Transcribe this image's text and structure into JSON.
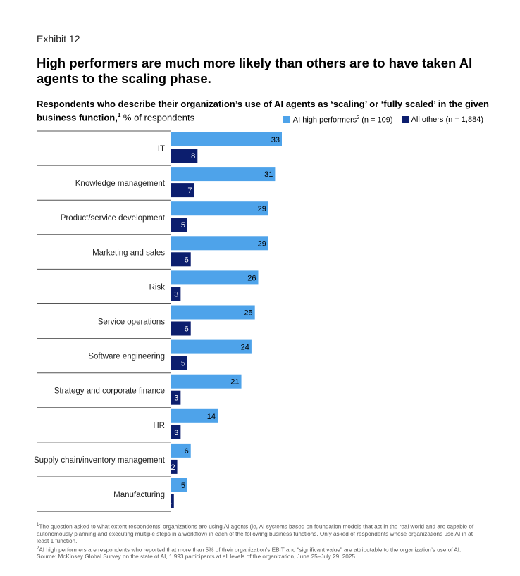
{
  "exhibit": "Exhibit 12",
  "headline": "High performers are much more likely than others are to have taken AI agents to the scaling phase.",
  "subtitle": {
    "bold": "Respondents who describe their organization’s use of AI agents as ‘scaling’ or ‘fully scaled’ in the given business function,",
    "sup": "1",
    "unit": " % of respondents"
  },
  "legend": {
    "high_label": "AI high performers",
    "high_sup": "2",
    "high_n": " (n = 109)",
    "others_label": "All others (n = 1,884)"
  },
  "colors": {
    "high": "#4ea3ea",
    "others": "#0c1e6e",
    "divider": "#555555"
  },
  "chart_data": {
    "type": "bar",
    "orientation": "horizontal",
    "categories": [
      "IT",
      "Knowledge management",
      "Product/service development",
      "Marketing and sales",
      "Risk",
      "Service operations",
      "Software engineering",
      "Strategy and corporate finance",
      "HR",
      "Supply chain/inventory management",
      "Manufacturing"
    ],
    "series": [
      {
        "name": "AI high performers (n = 109)",
        "values": [
          33,
          31,
          29,
          29,
          26,
          25,
          24,
          21,
          14,
          6,
          5
        ]
      },
      {
        "name": "All others (n = 1,884)",
        "values": [
          8,
          7,
          5,
          6,
          3,
          6,
          5,
          3,
          3,
          2,
          1
        ]
      }
    ],
    "unit": "% of respondents",
    "xlim": [
      0,
      33
    ]
  },
  "footnotes": [
    {
      "sup": "1",
      "text": "The question asked to what extent respondents’ organizations are using AI agents (ie, AI systems based on foundation models that act in the real world and are capable of autonomously planning and executing multiple steps in a workflow) in each of the following business functions. Only asked of respondents whose organizations use AI in at least 1 function."
    },
    {
      "sup": "2",
      "text": "AI high performers are respondents who reported that more than 5% of their organization’s EBIT and “significant value” are attributable to the organization’s use of AI."
    }
  ],
  "source": "Source: McKinsey Global Survey on the state of AI, 1,993 participants at all levels of the organization, June 25–July 29, 2025"
}
